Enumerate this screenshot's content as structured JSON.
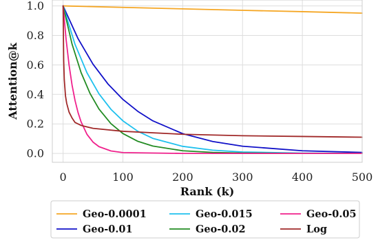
{
  "chart_data": {
    "type": "line",
    "title": "",
    "xlabel": "Rank (k)",
    "ylabel": "Attention@k",
    "xlim": [
      -18,
      500
    ],
    "ylim": [
      -0.06,
      1.04
    ],
    "xticks": [
      0,
      100,
      200,
      300,
      400,
      500
    ],
    "xtick_labels": [
      "0",
      "100",
      "200",
      "300",
      "400",
      "500"
    ],
    "yticks": [
      0.0,
      0.2,
      0.4,
      0.6,
      0.8,
      1.0
    ],
    "ytick_labels": [
      "0.0",
      "0.2",
      "0.4",
      "0.6",
      "0.8",
      "1.0"
    ],
    "grid": true,
    "legend_position": "bottom",
    "series": [
      {
        "name": "Geo-0.0001",
        "color": "#f5a623",
        "x": [
          0,
          100,
          200,
          300,
          400,
          500
        ],
        "y": [
          1.0,
          0.99,
          0.98,
          0.97,
          0.961,
          0.951
        ]
      },
      {
        "name": "Geo-0.01",
        "color": "#1010c8",
        "x": [
          0,
          25,
          50,
          75,
          100,
          125,
          150,
          200,
          250,
          300,
          400,
          500
        ],
        "y": [
          1.0,
          0.778,
          0.605,
          0.471,
          0.366,
          0.285,
          0.221,
          0.134,
          0.081,
          0.049,
          0.018,
          0.007
        ]
      },
      {
        "name": "Geo-0.015",
        "color": "#1ec0ee",
        "x": [
          0,
          20,
          40,
          60,
          80,
          100,
          125,
          150,
          200,
          250,
          300,
          400,
          500
        ],
        "y": [
          1.0,
          0.739,
          0.546,
          0.404,
          0.299,
          0.221,
          0.15,
          0.102,
          0.048,
          0.022,
          0.01,
          0.002,
          0.001
        ]
      },
      {
        "name": "Geo-0.02",
        "color": "#228b22",
        "x": [
          0,
          15,
          30,
          45,
          60,
          80,
          100,
          125,
          150,
          200,
          250,
          300,
          400,
          500
        ],
        "y": [
          1.0,
          0.741,
          0.549,
          0.407,
          0.301,
          0.202,
          0.135,
          0.082,
          0.05,
          0.018,
          0.007,
          0.003,
          0.0,
          0.0
        ]
      },
      {
        "name": "Geo-0.05",
        "color": "#f0208c",
        "x": [
          0,
          5,
          10,
          15,
          20,
          25,
          30,
          40,
          50,
          60,
          80,
          100,
          200,
          500
        ],
        "y": [
          1.0,
          0.774,
          0.599,
          0.463,
          0.358,
          0.277,
          0.215,
          0.129,
          0.077,
          0.046,
          0.017,
          0.006,
          0.0,
          0.0
        ]
      },
      {
        "name": "Log",
        "color": "#a02828",
        "x": [
          0,
          1,
          2,
          4,
          6,
          10,
          15,
          20,
          30,
          50,
          100,
          200,
          300,
          400,
          500
        ],
        "y": [
          1.0,
          0.63,
          0.5,
          0.39,
          0.34,
          0.28,
          0.24,
          0.21,
          0.19,
          0.17,
          0.15,
          0.13,
          0.12,
          0.115,
          0.11
        ]
      }
    ]
  }
}
